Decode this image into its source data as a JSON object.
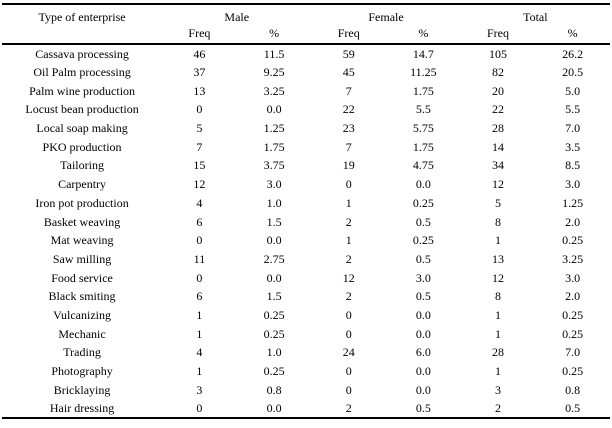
{
  "colors": {
    "text": "#000000",
    "background": "#ffffff",
    "rule": "#000000"
  },
  "table": {
    "col_groups": [
      {
        "label": "Type of enterprise",
        "span": 1
      },
      {
        "label": "Male",
        "span": 2
      },
      {
        "label": "Female",
        "span": 2
      },
      {
        "label": "Total",
        "span": 2
      }
    ],
    "sub_headers": [
      "Freq",
      "%",
      "Freq",
      "%",
      "Freq",
      "%"
    ],
    "rows": [
      [
        "Cassava processing",
        "46",
        "11.5",
        "59",
        "14.7",
        "105",
        "26.2"
      ],
      [
        "Oil Palm processing",
        "37",
        "9.25",
        "45",
        "11.25",
        "82",
        "20.5"
      ],
      [
        "Palm wine production",
        "13",
        "3.25",
        "7",
        "1.75",
        "20",
        "5.0"
      ],
      [
        "Locust bean production",
        "0",
        "0.0",
        "22",
        "5.5",
        "22",
        "5.5"
      ],
      [
        "Local soap making",
        "5",
        "1.25",
        "23",
        "5.75",
        "28",
        "7.0"
      ],
      [
        "PKO production",
        "7",
        "1.75",
        "7",
        "1.75",
        "14",
        "3.5"
      ],
      [
        "Tailoring",
        "15",
        "3.75",
        "19",
        "4.75",
        "34",
        "8.5"
      ],
      [
        "Carpentry",
        "12",
        "3.0",
        "0",
        "0.0",
        "12",
        "3.0"
      ],
      [
        "Iron pot production",
        "4",
        "1.0",
        "1",
        "0.25",
        "5",
        "1.25"
      ],
      [
        "Basket weaving",
        "6",
        "1.5",
        "2",
        "0.5",
        "8",
        "2.0"
      ],
      [
        "Mat weaving",
        "0",
        "0.0",
        "1",
        "0.25",
        "1",
        "0.25"
      ],
      [
        "Saw milling",
        "11",
        "2.75",
        "2",
        "0.5",
        "13",
        "3.25"
      ],
      [
        "Food service",
        "0",
        "0.0",
        "12",
        "3.0",
        "12",
        "3.0"
      ],
      [
        "Black smiting",
        "6",
        "1.5",
        "2",
        "0.5",
        "8",
        "2.0"
      ],
      [
        "Vulcanizing",
        "1",
        "0.25",
        "0",
        "0.0",
        "1",
        "0.25"
      ],
      [
        "Mechanic",
        "1",
        "0.25",
        "0",
        "0.0",
        "1",
        "0.25"
      ],
      [
        "Trading",
        "4",
        "1.0",
        "24",
        "6.0",
        "28",
        "7.0"
      ],
      [
        "Photography",
        "1",
        "0.25",
        "0",
        "0.0",
        "1",
        "0.25"
      ],
      [
        "Bricklaying",
        "3",
        "0.8",
        "0",
        "0.0",
        "3",
        "0.8"
      ],
      [
        "Hair dressing",
        "0",
        "0.0",
        "2",
        "0.5",
        "2",
        "0.5"
      ]
    ]
  }
}
